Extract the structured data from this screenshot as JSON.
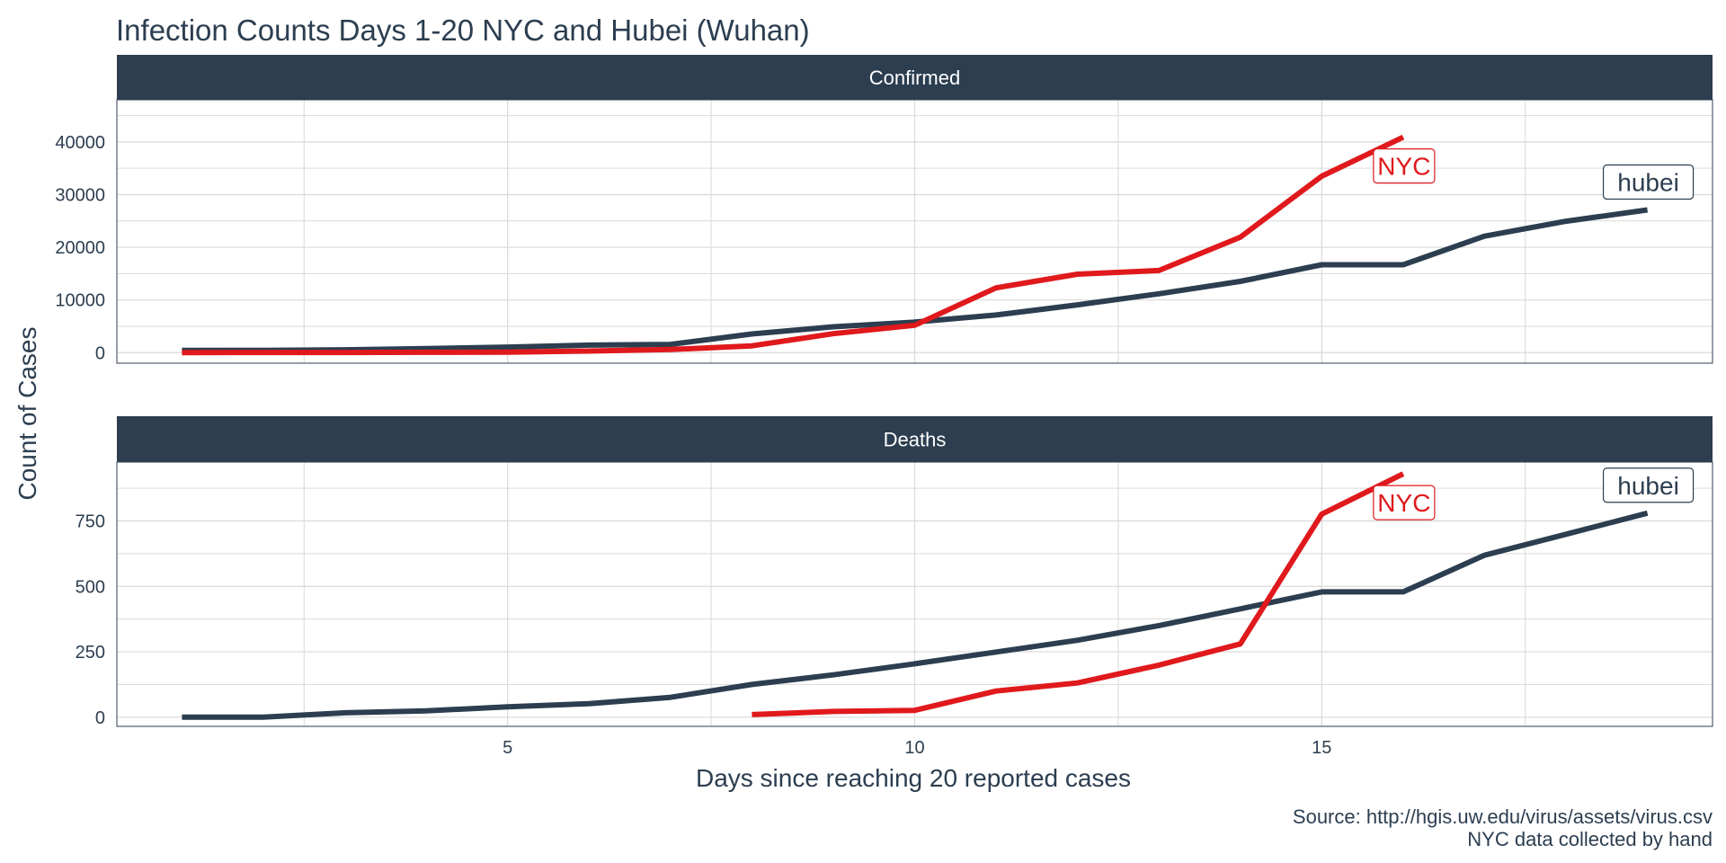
{
  "title": "Infection Counts Days 1-20 NYC and Hubei (Wuhan)",
  "caption_lines": [
    "Source: http://hgis.uw.edu/virus/assets/virus.csv",
    "NYC data collected by hand"
  ],
  "chart_data": {
    "type": "line",
    "title": "Infection Counts Days 1-20 NYC and Hubei (Wuhan)",
    "xlabel": "Days since reaching 20 reported cases",
    "ylabel": "Count of Cases",
    "xlim": [
      0.2,
      19.8
    ],
    "x_ticks": [
      5,
      10,
      15
    ],
    "grid": true,
    "legend": "none (direct labels at line ends)",
    "colors": {
      "hubei": "#2c3e50",
      "NYC": "#e0191c",
      "strip_bg": "#2c3e50",
      "strip_text": "#ffffff",
      "grid": "#d9d9d9"
    },
    "panels": [
      {
        "strip_label": "Confirmed",
        "ylim": [
          -2000,
          48000
        ],
        "y_ticks": [
          0,
          10000,
          20000,
          30000,
          40000
        ],
        "y_tick_labels": [
          "0",
          "10000",
          "20000",
          "30000",
          "40000"
        ],
        "series": [
          {
            "name": "hubei",
            "x": [
              1,
              2,
              3,
              4,
              5,
              6,
              7,
              8,
              9,
              10,
              11,
              12,
              13,
              14,
              15,
              16,
              17,
              18,
              19
            ],
            "values": [
              444,
              444,
              549,
              761,
              1058,
              1423,
              1559,
              3554,
              4903,
              5806,
              7153,
              9074,
              11177,
              13522,
              16678,
              16678,
              22112,
              24953,
              27100
            ]
          },
          {
            "name": "NYC",
            "x": [
              1,
              2,
              3,
              4,
              5,
              6,
              7,
              8,
              9,
              10,
              11,
              12,
              13,
              14,
              15,
              16
            ],
            "values": [
              20,
              25,
              30,
              60,
              100,
              300,
              600,
              1300,
              3600,
              5200,
              12300,
              14900,
              15600,
              21900,
              33500,
              40900
            ]
          }
        ]
      },
      {
        "strip_label": "Deaths",
        "ylim": [
          -35,
          975
        ],
        "y_ticks": [
          0,
          250,
          500,
          750
        ],
        "y_tick_labels": [
          "0",
          "250",
          "500",
          "750"
        ],
        "series": [
          {
            "name": "hubei",
            "x": [
              1,
              2,
              3,
              4,
              5,
              6,
              7,
              8,
              9,
              10,
              11,
              12,
              13,
              14,
              15,
              16,
              17,
              18,
              19
            ],
            "values": [
              0,
              0,
              17,
              24,
              40,
              52,
              76,
              125,
              162,
              204,
              249,
              294,
              350,
              414,
              479,
              479,
              619,
              699,
              780
            ]
          },
          {
            "name": "NYC",
            "x": [
              8,
              9,
              10,
              11,
              12,
              13,
              14,
              15,
              16
            ],
            "values": [
              10,
              22,
              26,
              100,
              131,
              199,
              280,
              776,
              930
            ]
          }
        ]
      }
    ]
  }
}
